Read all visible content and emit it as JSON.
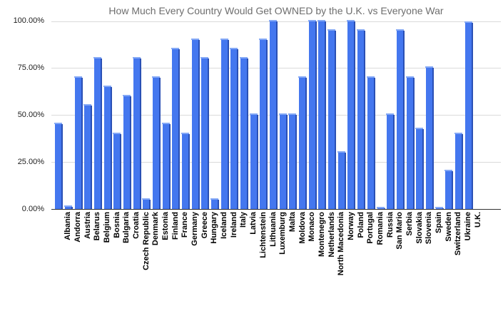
{
  "chart_data": {
    "type": "bar",
    "title": "How Much Every Country Would Get OWNED by the U.K. vs Everyone War",
    "categories": [
      "Albania",
      "Andorra",
      "Austria",
      "Belarus",
      "Belgium",
      "Bosnia",
      "Bulgaria",
      "Croatia",
      "Czech Republic",
      "Denmark",
      "Estonia",
      "Finland",
      "France",
      "Germany",
      "Greece",
      "Hungary",
      "Iceland",
      "Ireland",
      "Italy",
      "Latvia",
      "Lichtenstein",
      "Lithuania",
      "Luxemburg",
      "Malta",
      "Moldova",
      "Monaco",
      "Montenegro",
      "Netherlands",
      "North Macedonia",
      "Norway",
      "Poland",
      "Portugal",
      "Romania",
      "Russia",
      "San Mario",
      "Serbia",
      "Slovakia",
      "Slovenia",
      "Spain",
      "Sweden",
      "Switzerland",
      "Ukraine",
      "U.K."
    ],
    "values": [
      45,
      1,
      70,
      55,
      80,
      65,
      40,
      60,
      80,
      5,
      70,
      45,
      85,
      40,
      90,
      80,
      5,
      90,
      85,
      80,
      50,
      90,
      100,
      50,
      50,
      70,
      100,
      100,
      95,
      30,
      100,
      95,
      70,
      0.5,
      50,
      95,
      70,
      42.5,
      75,
      0.5,
      20,
      40,
      99
    ],
    "xlabel": "",
    "ylabel": "",
    "ylim": [
      0,
      100
    ],
    "ytick_labels": [
      "0.00%",
      "25.00%",
      "50.00%",
      "75.00%",
      "100.00%"
    ],
    "grid": true,
    "legend": "none",
    "colors": {
      "bar": "#4477EF",
      "bar_edge": "#2A50B5",
      "bar_cap": "#85A9F6",
      "gridline": "#DADADA",
      "axis_line": "#333333",
      "title_text": "#6E6E6E",
      "tick_text": "#1C1C1C",
      "label_text": "#000000",
      "background": "#FFFFFF"
    }
  }
}
